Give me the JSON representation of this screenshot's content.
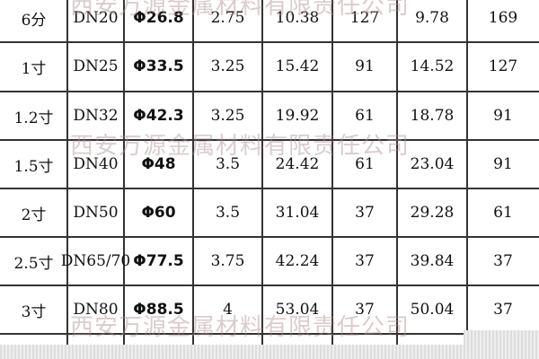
{
  "watermark": "西安万源金属材料有限责任公司",
  "rows": [
    [
      "6分",
      "DN20",
      "Φ26.8",
      "2.75",
      "10.38",
      "127",
      "9.78",
      "169"
    ],
    [
      "1寸",
      "DN25",
      "Φ33.5",
      "3.25",
      "15.42",
      "91",
      "14.52",
      "127"
    ],
    [
      "1.2寸",
      "DN32",
      "Φ42.3",
      "3.25",
      "19.92",
      "61",
      "18.78",
      "91"
    ],
    [
      "1.5寸",
      "DN40",
      "Φ48",
      "3.5",
      "24.42",
      "61",
      "23.04",
      "91"
    ],
    [
      "2寸",
      "DN50",
      "Φ60",
      "3.5",
      "31.04",
      "37",
      "29.28",
      "61"
    ],
    [
      "2.5寸",
      "DN65/70",
      "Φ77.5",
      "3.75",
      "42.24",
      "37",
      "39.84",
      "37"
    ],
    [
      "3寸",
      "DN80",
      "Φ88.5",
      "4",
      "53.04",
      "37",
      "50.04",
      "37"
    ]
  ]
}
